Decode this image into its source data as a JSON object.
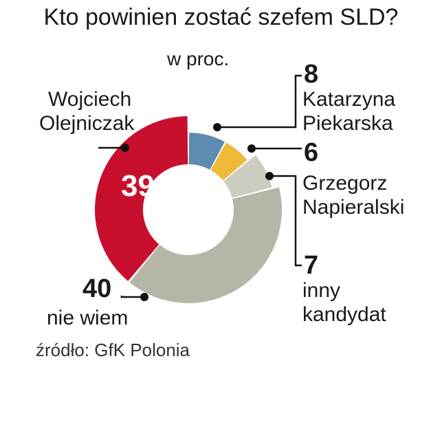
{
  "title": "Kto powinien zostać szefem SLD?",
  "unit_label": "w proc.",
  "source": "źródło: GfK Polonia",
  "colors": {
    "olejniczak": "#c8102e",
    "piekarska": "#5e8bb0",
    "napieralski": "#f0b93a",
    "inny": "#ccccc0",
    "nie_wiem": "#b6b6a8"
  },
  "chart_data": {
    "type": "pie",
    "title": "Kto powinien zostać szefem SLD?",
    "unit": "w proc.",
    "slices": [
      {
        "key": "olejniczak",
        "label_lines": [
          "Wojciech",
          "Olejniczak"
        ],
        "value": 39,
        "value_label": "39"
      },
      {
        "key": "piekarska",
        "label_lines": [
          "Katarzyna",
          "Piekarska"
        ],
        "value": 8,
        "value_label": "8"
      },
      {
        "key": "napieralski",
        "label_lines": [
          "Grzegorz",
          "Napieralski"
        ],
        "value": 6,
        "value_label": "6"
      },
      {
        "key": "inny",
        "label_lines": [
          "inny",
          "kandydat"
        ],
        "value": 7,
        "value_label": "7"
      },
      {
        "key": "nie_wiem",
        "label_lines": [
          "nie wiem"
        ],
        "value": 40,
        "value_label": "40"
      }
    ]
  }
}
